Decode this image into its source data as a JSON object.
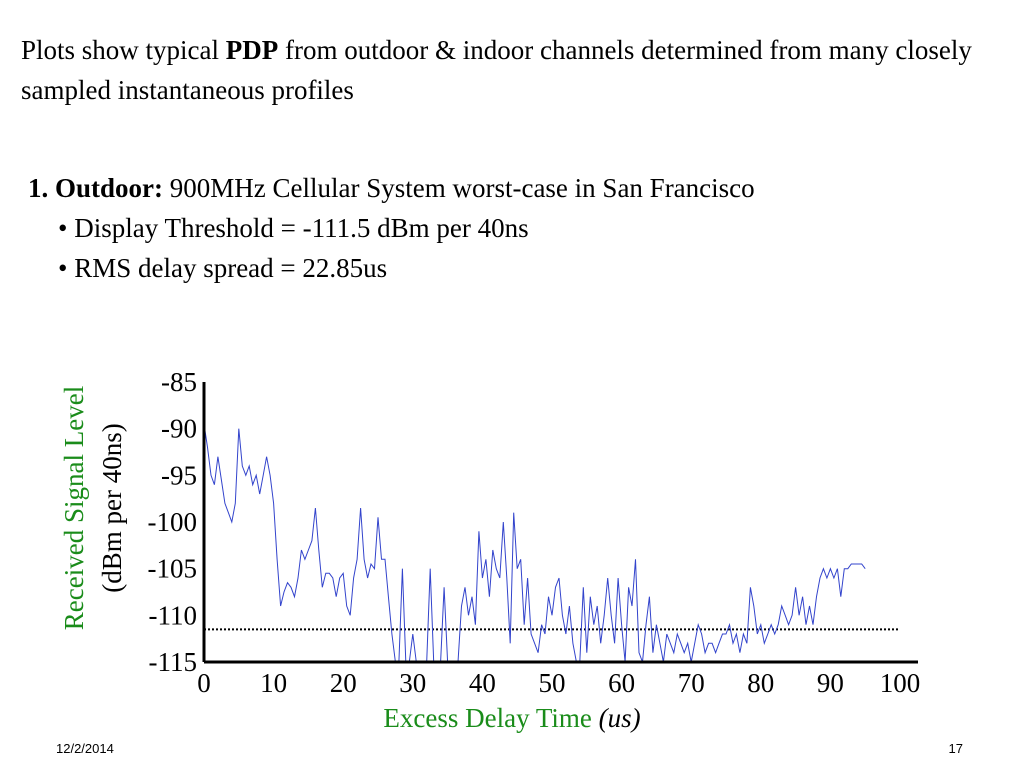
{
  "intro": {
    "pre": "Plots show typical ",
    "bold": "PDP",
    "post": " from outdoor & indoor channels determined from many closely sampled instantaneous profiles"
  },
  "section": {
    "heading_bold": "1. Outdoor:",
    "heading_rest": " 900MHz Cellular System worst-case in San Francisco",
    "bullets": [
      "• Display Threshold = -111.5 dBm per 40ns",
      "• RMS delay spread = 22.85us"
    ]
  },
  "footer": {
    "date": "12/2/2014",
    "page": "17"
  },
  "colors": {
    "trace": "#3344cc",
    "label_green": "#1a8c1a",
    "axis": "#000000"
  },
  "chart_data": {
    "type": "line",
    "xlabel": "Excess Delay Time",
    "xlabel_unit": "(us)",
    "ylabel": "Received Signal Level",
    "ylabel_unit": "(dBm per 40ns)",
    "xlim": [
      0,
      100
    ],
    "ylim": [
      -115,
      -85
    ],
    "x_ticks": [
      "0",
      "10",
      "20",
      "30",
      "40",
      "50",
      "60",
      "70",
      "80",
      "90",
      "100"
    ],
    "y_ticks": [
      "-85",
      "-90",
      "-95",
      "-100",
      "-105",
      "-110",
      "-115"
    ],
    "threshold": -111.5,
    "threshold_style": "dotted",
    "series": [
      {
        "x": [
          0,
          0.5,
          1,
          1.5,
          2,
          2.5,
          3,
          3.5,
          4,
          4.5,
          5,
          5.5,
          6,
          6.5,
          7,
          7.5,
          8,
          8.5,
          9,
          9.5,
          10,
          10.5,
          11,
          11.5,
          12,
          12.5,
          13,
          13.5,
          14,
          14.5,
          15,
          15.5,
          16,
          16.5,
          17,
          17.5,
          18,
          18.5,
          19,
          19.5,
          20,
          20.5,
          21,
          21.5,
          22,
          22.5,
          23,
          23.5,
          24,
          24.5,
          25,
          25.5,
          26,
          26.5,
          27,
          27.5,
          28,
          28.5,
          29,
          29.5,
          30,
          30.5,
          31,
          31.5,
          32,
          32.5,
          33,
          33.5,
          34,
          34.5,
          35,
          35.5,
          36,
          36.5,
          37,
          37.5,
          38,
          38.5,
          39,
          39.5,
          40,
          40.5,
          41,
          41.5,
          42,
          42.5,
          43,
          43.5,
          44,
          44.5,
          45,
          45.5,
          46,
          46.5,
          47,
          47.5,
          48,
          48.5,
          49,
          49.5,
          50,
          50.5,
          51,
          51.5,
          52,
          52.5,
          53,
          53.5,
          54,
          54.5,
          55,
          55.5,
          56,
          56.5,
          57,
          57.5,
          58,
          58.5,
          59,
          59.5,
          60,
          60.5,
          61,
          61.5,
          62,
          62.5,
          63,
          63.5,
          64,
          64.5,
          65,
          65.5,
          66,
          66.5,
          67,
          67.5,
          68,
          68.5,
          69,
          69.5,
          70,
          70.5,
          71,
          71.5,
          72,
          72.5,
          73,
          73.5,
          74,
          74.5,
          75,
          75.5,
          76,
          76.5,
          77,
          77.5,
          78,
          78.5,
          79,
          79.5,
          80,
          80.5,
          81,
          81.5,
          82,
          82.5,
          83,
          83.5,
          84,
          84.5,
          85,
          85.5,
          86,
          86.5,
          87,
          87.5,
          88,
          88.5,
          89,
          89.5,
          90,
          90.5,
          91,
          91.5,
          92,
          92.5,
          93,
          93.5,
          94,
          94.5,
          95
        ],
        "y": [
          -89.5,
          -92,
          -95,
          -96,
          -93,
          -95.5,
          -98,
          -99,
          -100,
          -98,
          -90,
          -94,
          -95,
          -94,
          -96,
          -95,
          -97,
          -95,
          -93,
          -95,
          -98,
          -104,
          -109,
          -107.5,
          -106.5,
          -107,
          -108,
          -106,
          -103,
          -104,
          -103,
          -102,
          -98.5,
          -103,
          -107,
          -105.5,
          -105.5,
          -106,
          -108,
          -106,
          -105.5,
          -109,
          -110,
          -106,
          -104,
          -98.5,
          -104,
          -106,
          -104.5,
          -105,
          -99.5,
          -104,
          -104,
          -108,
          -112,
          -115,
          -116,
          -105,
          -115,
          -116,
          -112,
          -116,
          -115,
          -115,
          -116,
          -105,
          -115,
          -116,
          -115,
          -107,
          -115,
          -117,
          -116,
          -115,
          -109,
          -107,
          -110,
          -108,
          -111,
          -101,
          -106,
          -104,
          -108,
          -103,
          -105,
          -106,
          -100,
          -106,
          -113,
          -99,
          -105,
          -104,
          -111,
          -106,
          -112,
          -113,
          -114,
          -111,
          -112,
          -108,
          -110,
          -107,
          -106,
          -110,
          -112,
          -109,
          -113,
          -116,
          -117,
          -107,
          -114,
          -108,
          -111,
          -109,
          -113,
          -110,
          -106,
          -110,
          -113,
          -106,
          -111,
          -115,
          -107,
          -109,
          -104,
          -114,
          -116,
          -111,
          -108,
          -114,
          -111,
          -113,
          -116,
          -112,
          -113,
          -114,
          -112,
          -113,
          -114,
          -113,
          -115,
          -113,
          -111,
          -112,
          -114,
          -113,
          -113,
          -114,
          -113,
          -112,
          -112,
          -111,
          -113,
          -112,
          -114,
          -112,
          -113,
          -107,
          -109,
          -112,
          -111,
          -113,
          -112,
          -111,
          -112,
          -111,
          -109,
          -110,
          -111,
          -110,
          -107,
          -110,
          -108,
          -111,
          -109,
          -111,
          -108,
          -106,
          -105,
          -106,
          -105,
          -106,
          -105,
          -108,
          -105,
          -105,
          -104.5,
          -104.5,
          -104.5,
          -104.5,
          -105
        ]
      }
    ]
  }
}
